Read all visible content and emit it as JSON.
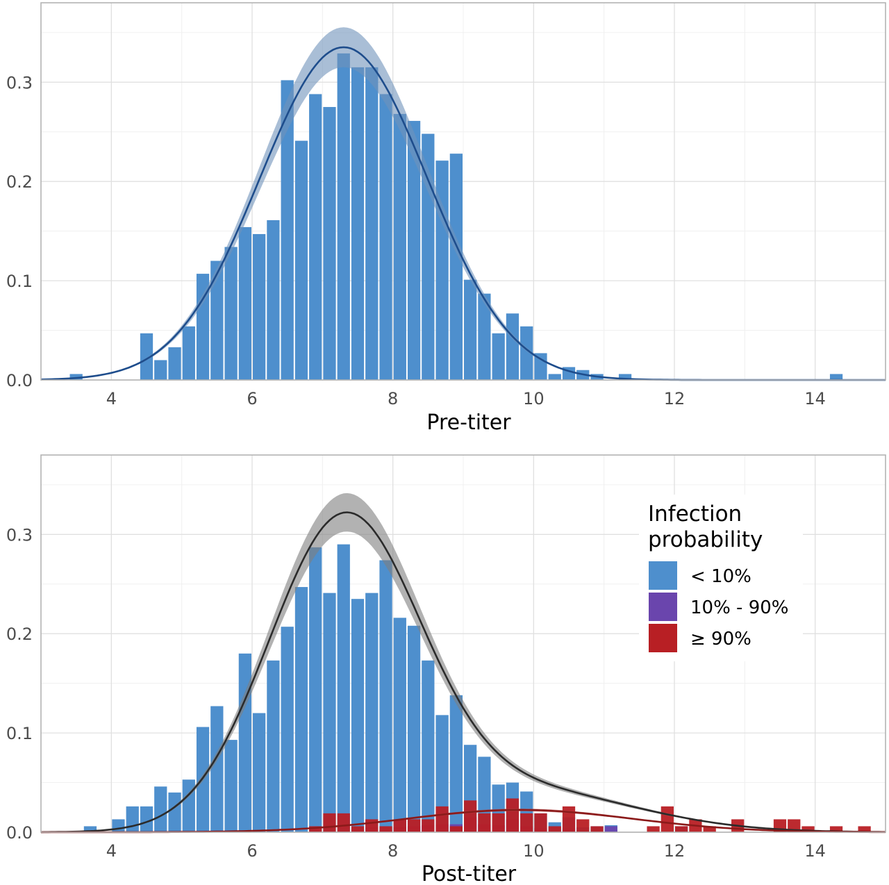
{
  "chart_data": [
    {
      "type": "bar",
      "xlabel": "Pre-titer",
      "ylabel": "",
      "xlim": [
        3,
        15
      ],
      "ylim": [
        0,
        0.38
      ],
      "xticks": [
        4,
        6,
        8,
        10,
        12,
        14
      ],
      "yticks": [
        0.0,
        0.1,
        0.2,
        0.3
      ],
      "ytick_labels": [
        "0.0",
        "0.1",
        "0.2",
        "0.3"
      ],
      "grid": true,
      "bin_width": 0.2,
      "series": [
        {
          "color": "#4e8fcd",
          "bins": [
            [
              3.4,
              0.006
            ],
            [
              4.4,
              0.047
            ],
            [
              4.6,
              0.02
            ],
            [
              4.8,
              0.033
            ],
            [
              5.0,
              0.054
            ],
            [
              5.2,
              0.107
            ],
            [
              5.4,
              0.12
            ],
            [
              5.6,
              0.134
            ],
            [
              5.8,
              0.154
            ],
            [
              6.0,
              0.147
            ],
            [
              6.2,
              0.161
            ],
            [
              6.4,
              0.302
            ],
            [
              6.6,
              0.241
            ],
            [
              6.8,
              0.288
            ],
            [
              7.0,
              0.275
            ],
            [
              7.2,
              0.329
            ],
            [
              7.4,
              0.315
            ],
            [
              7.6,
              0.315
            ],
            [
              7.8,
              0.288
            ],
            [
              8.0,
              0.268
            ],
            [
              8.2,
              0.261
            ],
            [
              8.4,
              0.248
            ],
            [
              8.6,
              0.221
            ],
            [
              8.8,
              0.228
            ],
            [
              9.0,
              0.101
            ],
            [
              9.2,
              0.087
            ],
            [
              9.4,
              0.047
            ],
            [
              9.6,
              0.067
            ],
            [
              9.8,
              0.054
            ],
            [
              10.0,
              0.027
            ],
            [
              10.2,
              0.006
            ],
            [
              10.4,
              0.013
            ],
            [
              10.6,
              0.01
            ],
            [
              10.8,
              0.006
            ],
            [
              11.2,
              0.006
            ],
            [
              14.2,
              0.006
            ]
          ]
        }
      ],
      "density": {
        "color": "#1e4d8c",
        "band_color": "#6f92ba",
        "components": [
          {
            "weight": 1.0,
            "mean": 7.3,
            "sd": 1.19,
            "band_sd_delta": 0.05
          }
        ]
      }
    },
    {
      "type": "bar",
      "xlabel": "Post-titer",
      "ylabel": "",
      "xlim": [
        3,
        15
      ],
      "ylim": [
        0,
        0.38
      ],
      "xticks": [
        4,
        6,
        8,
        10,
        12,
        14
      ],
      "yticks": [
        0.0,
        0.1,
        0.2,
        0.3
      ],
      "ytick_labels": [
        "0.0",
        "0.1",
        "0.2",
        "0.3"
      ],
      "grid": true,
      "bin_width": 0.2,
      "legend": {
        "title_line1": "Infection",
        "title_line2": "probability",
        "placement": "top-right"
      },
      "series": [
        {
          "name": "< 10%",
          "color": "#4e8fcd",
          "bins": [
            [
              3.6,
              0.006
            ],
            [
              4.0,
              0.013
            ],
            [
              4.2,
              0.026
            ],
            [
              4.4,
              0.026
            ],
            [
              4.6,
              0.046
            ],
            [
              4.8,
              0.04
            ],
            [
              5.0,
              0.053
            ],
            [
              5.2,
              0.106
            ],
            [
              5.4,
              0.127
            ],
            [
              5.6,
              0.093
            ],
            [
              5.8,
              0.18
            ],
            [
              6.0,
              0.12
            ],
            [
              6.2,
              0.173
            ],
            [
              6.4,
              0.207
            ],
            [
              6.6,
              0.247
            ],
            [
              6.8,
              0.287
            ],
            [
              7.0,
              0.241
            ],
            [
              7.2,
              0.29
            ],
            [
              7.4,
              0.235
            ],
            [
              7.6,
              0.241
            ],
            [
              7.8,
              0.274
            ],
            [
              8.0,
              0.216
            ],
            [
              8.2,
              0.208
            ],
            [
              8.4,
              0.173
            ],
            [
              8.6,
              0.118
            ],
            [
              8.8,
              0.138
            ],
            [
              9.0,
              0.088
            ],
            [
              9.2,
              0.076
            ],
            [
              9.4,
              0.048
            ],
            [
              9.6,
              0.05
            ],
            [
              9.8,
              0.041
            ],
            [
              10.0,
              0.019
            ],
            [
              10.2,
              0.01
            ],
            [
              10.4,
              0.015
            ],
            [
              10.6,
              0.005
            ],
            [
              10.8,
              0.006
            ],
            [
              11.0,
              0.007
            ],
            [
              12.0,
              0.006
            ]
          ]
        },
        {
          "name": "10% - 90%",
          "color": "#6a45ad",
          "bins": [
            [
              7.0,
              0.001
            ],
            [
              7.4,
              0.003
            ],
            [
              7.6,
              0.005
            ],
            [
              7.8,
              0.002
            ],
            [
              8.0,
              0.005
            ],
            [
              8.2,
              0.006
            ],
            [
              8.4,
              0.007
            ],
            [
              8.6,
              0.008
            ],
            [
              8.8,
              0.008
            ],
            [
              9.0,
              0.015
            ],
            [
              9.2,
              0.008
            ],
            [
              9.4,
              0.007
            ],
            [
              9.6,
              0.013
            ],
            [
              9.8,
              0.006
            ],
            [
              10.0,
              0.004
            ],
            [
              10.4,
              0.004
            ],
            [
              11.0,
              0.006
            ]
          ]
        },
        {
          "name": "≥ 90%",
          "color": "#b81f24",
          "bins": [
            [
              6.8,
              0.006
            ],
            [
              7.0,
              0.019
            ],
            [
              7.2,
              0.019
            ],
            [
              7.4,
              0.006
            ],
            [
              7.6,
              0.013
            ],
            [
              7.8,
              0.006
            ],
            [
              8.0,
              0.013
            ],
            [
              8.2,
              0.013
            ],
            [
              8.4,
              0.013
            ],
            [
              8.6,
              0.026
            ],
            [
              8.8,
              0.006
            ],
            [
              9.0,
              0.032
            ],
            [
              9.2,
              0.019
            ],
            [
              9.4,
              0.019
            ],
            [
              9.6,
              0.034
            ],
            [
              9.8,
              0.019
            ],
            [
              10.0,
              0.019
            ],
            [
              10.2,
              0.006
            ],
            [
              10.4,
              0.026
            ],
            [
              10.6,
              0.013
            ],
            [
              10.8,
              0.006
            ],
            [
              11.6,
              0.006
            ],
            [
              11.8,
              0.026
            ],
            [
              12.0,
              0.006
            ],
            [
              12.2,
              0.013
            ],
            [
              12.4,
              0.006
            ],
            [
              12.8,
              0.013
            ],
            [
              13.4,
              0.013
            ],
            [
              13.6,
              0.013
            ],
            [
              13.8,
              0.006
            ],
            [
              14.2,
              0.006
            ],
            [
              14.6,
              0.006
            ]
          ]
        }
      ],
      "density": {
        "color": "#2b2b2b",
        "band_color": "#7f7f7f",
        "components": [
          {
            "weight": 0.83,
            "mean": 7.3,
            "sd": 1.07,
            "band_sd_delta": 0.05
          },
          {
            "weight": 0.17,
            "mean": 9.8,
            "sd": 1.6,
            "band_sd_delta": 0.05
          }
        ],
        "subset": {
          "color": "#8b1a1a",
          "band_color": "#b84a4a",
          "components": [
            {
              "weight": 0.09,
              "mean": 9.8,
              "sd": 1.6,
              "band_sd_delta": 0.04
            }
          ]
        }
      }
    }
  ]
}
